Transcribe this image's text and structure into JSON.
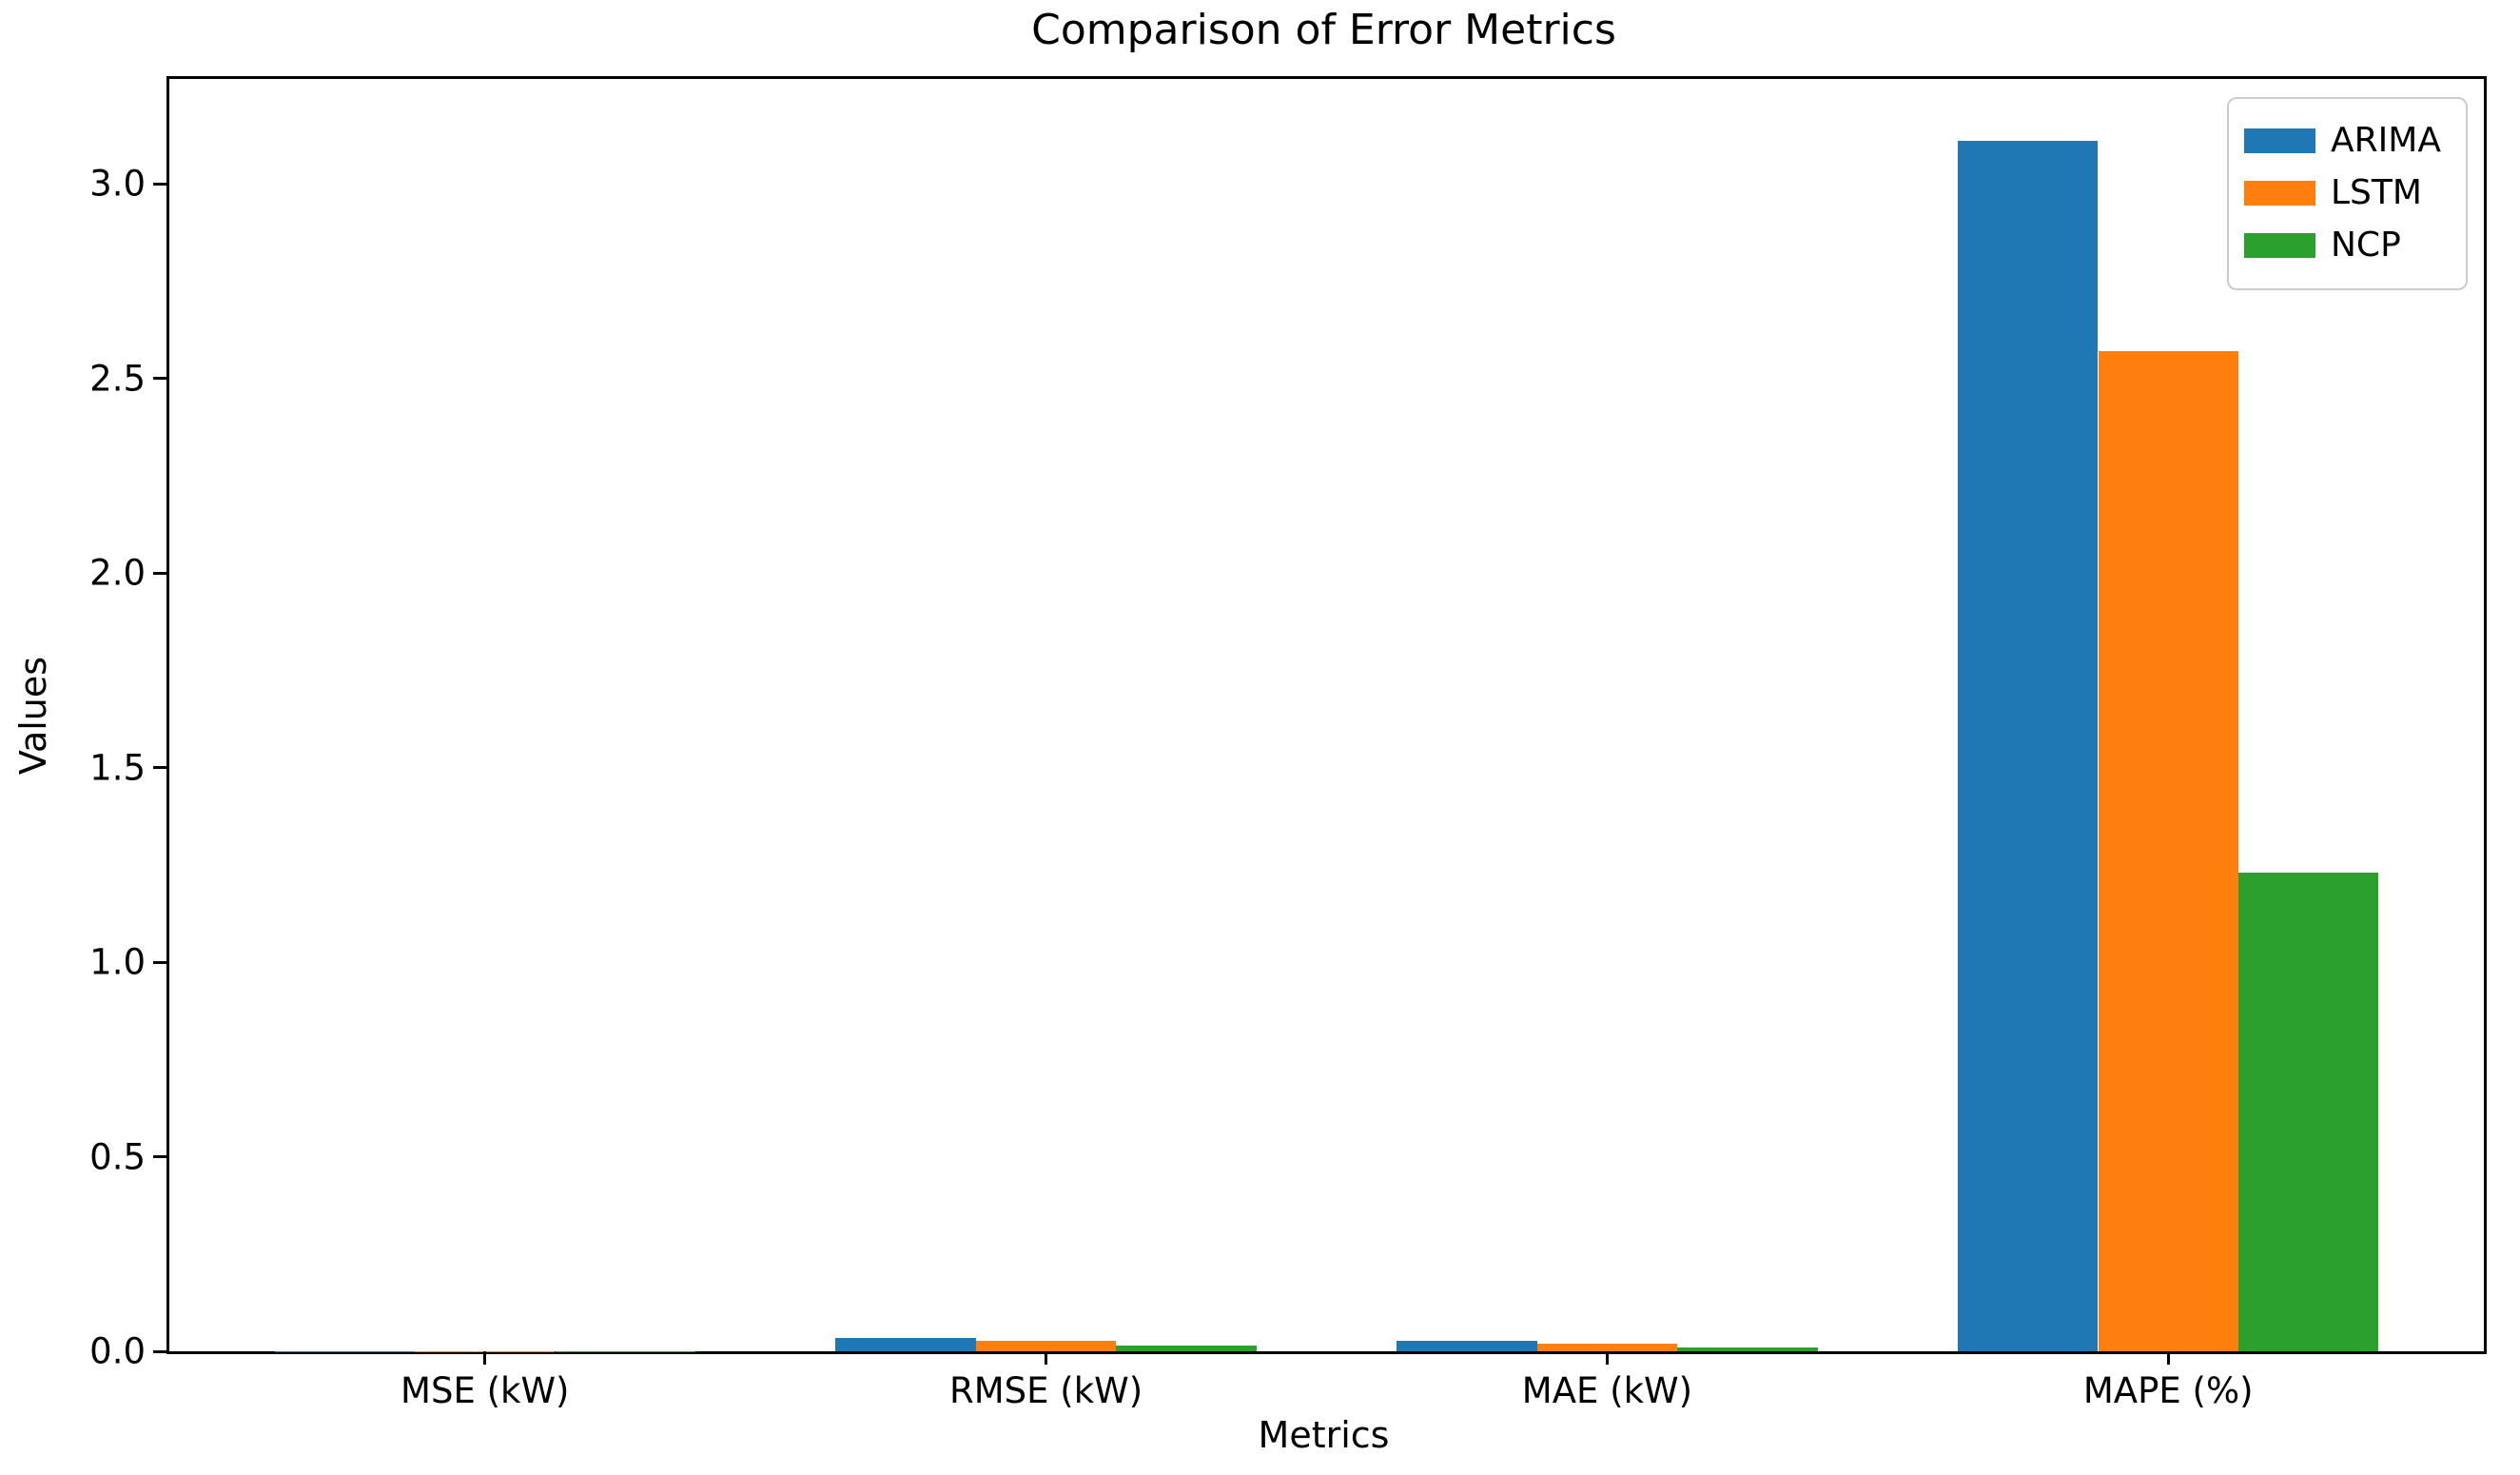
{
  "chart_data": {
    "type": "bar",
    "title": "Comparison of Error Metrics",
    "xlabel": "Metrics",
    "ylabel": "Values",
    "categories": [
      "MSE (kW)",
      "RMSE (kW)",
      "MAE (kW)",
      "MAPE (%)"
    ],
    "series": [
      {
        "name": "ARIMA",
        "color": "#1f77b4",
        "values": [
          0.001,
          0.035,
          0.026,
          3.11
        ]
      },
      {
        "name": "LSTM",
        "color": "#ff7f0e",
        "values": [
          0.0007,
          0.028,
          0.02,
          2.57
        ]
      },
      {
        "name": "NCP",
        "color": "#2ca02c",
        "values": [
          0.0002,
          0.014,
          0.011,
          1.23
        ]
      }
    ],
    "y_ticks": [
      0.0,
      0.5,
      1.0,
      1.5,
      2.0,
      2.5,
      3.0
    ],
    "y_tick_labels": [
      "0.0",
      "0.5",
      "1.0",
      "1.5",
      "2.0",
      "2.5",
      "3.0"
    ],
    "ylim": [
      0,
      3.27
    ],
    "grid": false,
    "legend_position": "upper right",
    "bar_width_fraction": 0.25,
    "group_span_units": 4.125,
    "left_margin_units": 0.5625
  }
}
